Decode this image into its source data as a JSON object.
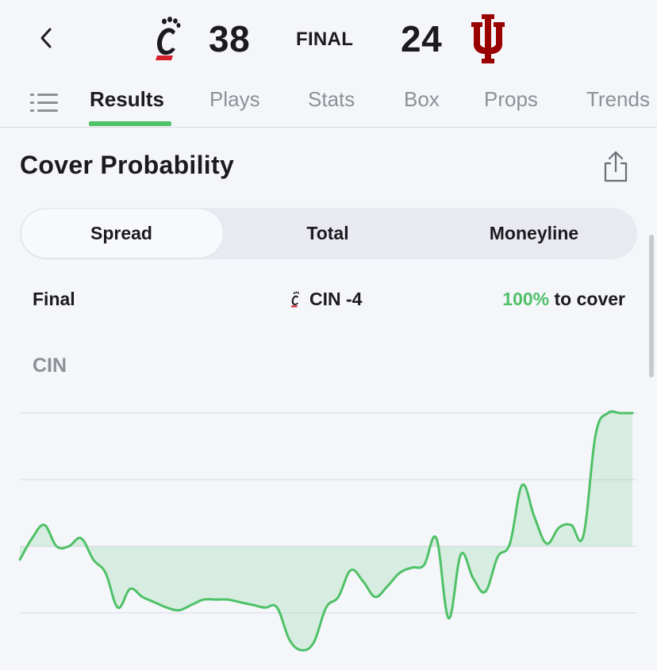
{
  "header": {
    "home_score": "38",
    "status": "FINAL",
    "away_score": "24",
    "home_logo_icon": "bearcat-c-logo",
    "away_logo_icon": "iu-trident-logo",
    "brand_colors": {
      "home": "#d4202b",
      "away": "#990000"
    }
  },
  "tabs": [
    {
      "label": "Results",
      "active": true
    },
    {
      "label": "Plays",
      "active": false
    },
    {
      "label": "Stats",
      "active": false
    },
    {
      "label": "Box",
      "active": false
    },
    {
      "label": "Props",
      "active": false
    },
    {
      "label": "Trends",
      "active": false
    }
  ],
  "section": {
    "title": "Cover Probability"
  },
  "segmented": {
    "options": [
      "Spread",
      "Total",
      "Moneyline"
    ],
    "selected": "Spread"
  },
  "summary": {
    "label": "Final",
    "pick": "CIN -4",
    "pct": "100%",
    "suffix": " to cover"
  },
  "chart_label": "CIN",
  "accent_color": "#4fc167",
  "chart_data": {
    "type": "area",
    "ylim": [
      0,
      100
    ],
    "baseline": 50,
    "gridlines": [
      100,
      75,
      50,
      25
    ],
    "x": [
      0,
      0.5,
      1,
      1.5,
      2,
      2.5,
      3,
      3.5,
      4,
      4.5,
      5,
      5.5,
      6,
      6.5,
      7,
      7.5,
      8,
      8.5,
      9,
      9.5,
      10,
      10.5,
      11,
      11.5,
      12,
      12.5,
      13,
      13.5,
      14,
      14.5,
      15,
      15.5,
      16,
      16.5,
      17,
      17.5,
      18,
      18.5,
      19,
      19.5,
      20,
      20.5,
      21,
      21.5,
      22,
      22.5,
      23,
      23.5,
      24,
      24.5,
      25,
      25.5,
      26,
      26.5,
      27,
      27.5,
      28,
      28.5,
      29,
      29.5,
      30,
      30.5,
      31,
      31.5,
      32,
      32.5,
      33,
      33.5,
      34,
      34.5,
      35,
      35.5,
      36,
      36.5,
      37,
      37.5,
      38,
      38.5,
      39,
      39.5,
      40,
      40.5,
      41,
      41.5,
      42,
      42.5,
      43,
      43.5,
      44,
      44.5,
      45
    ],
    "values": [
      45,
      53,
      58,
      50,
      50,
      53,
      45,
      40,
      27,
      34,
      31,
      29,
      27,
      26,
      28,
      30,
      30,
      30,
      29,
      28,
      27,
      27,
      15,
      11,
      14,
      27,
      31,
      41,
      37,
      31,
      35,
      40,
      42,
      43,
      53,
      23,
      47,
      38,
      33,
      46,
      51,
      73,
      61,
      51,
      57,
      58,
      54,
      92,
      100,
      100,
      100,
      null,
      null,
      null,
      null,
      null,
      null,
      null,
      null,
      null,
      null,
      null,
      null,
      null,
      null,
      null,
      null,
      null,
      null,
      null,
      null,
      null,
      null,
      null,
      null,
      null,
      null,
      null,
      null,
      null,
      null,
      null,
      null,
      null,
      null,
      null,
      null,
      null,
      null,
      null,
      null
    ]
  }
}
